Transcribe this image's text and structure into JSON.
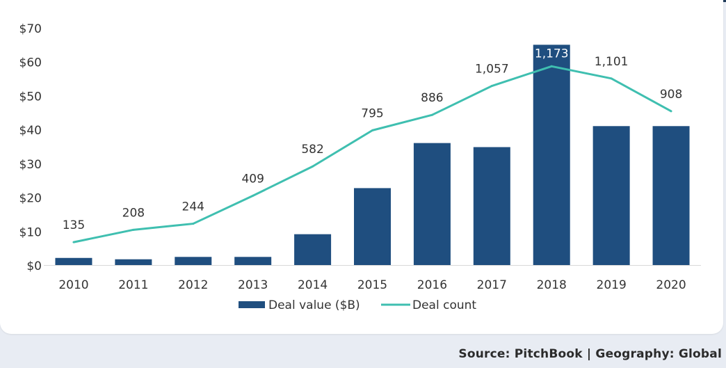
{
  "chart_data": {
    "type": "bar",
    "categories": [
      "2010",
      "2011",
      "2012",
      "2013",
      "2014",
      "2015",
      "2016",
      "2017",
      "2018",
      "2019",
      "2020"
    ],
    "series": [
      {
        "name": "Deal value ($B)",
        "type": "bar",
        "values": [
          2.1,
          1.7,
          2.4,
          2.4,
          9.1,
          22.7,
          36.0,
          34.8,
          65.0,
          41.0,
          41.0
        ]
      },
      {
        "name": "Deal count",
        "type": "line",
        "values": [
          135,
          208,
          244,
          409,
          582,
          795,
          886,
          1057,
          1173,
          1101,
          908
        ],
        "labels": [
          "135",
          "208",
          "244",
          "409",
          "582",
          "795",
          "886",
          "1,057",
          "1,173",
          "1,101",
          "908"
        ]
      }
    ],
    "y_ticks": [
      "$0",
      "$10",
      "$20",
      "$30",
      "$40",
      "$50",
      "$60",
      "$70"
    ],
    "ylim": [
      0,
      70
    ],
    "secondary_ylim": [
      0,
      1400
    ],
    "legend_position": "bottom-center",
    "colors": {
      "bar": "#1f4e7f",
      "line": "#3fbfb0",
      "axis": "#d9d9d9",
      "text": "#333333"
    }
  },
  "footer": {
    "source": "Source: PitchBook | Geography: Global"
  }
}
